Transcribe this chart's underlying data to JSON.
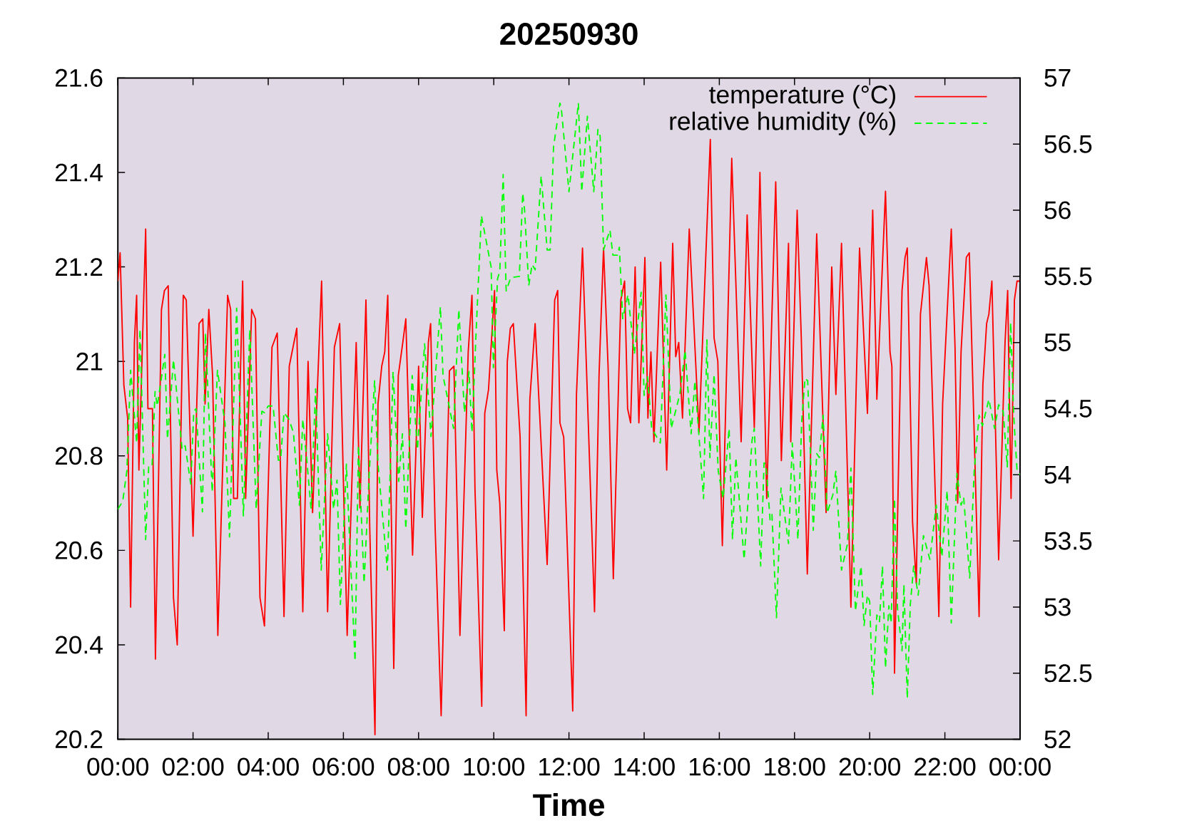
{
  "chart_data": {
    "type": "line",
    "title": "20250930",
    "xlabel": "Time",
    "xlim": [
      0,
      24
    ],
    "xticks": [
      {
        "value": 0,
        "label": "00:00"
      },
      {
        "value": 2,
        "label": "02:00"
      },
      {
        "value": 4,
        "label": "04:00"
      },
      {
        "value": 6,
        "label": "06:00"
      },
      {
        "value": 8,
        "label": "08:00"
      },
      {
        "value": 10,
        "label": "10:00"
      },
      {
        "value": 12,
        "label": "12:00"
      },
      {
        "value": 14,
        "label": "14:00"
      },
      {
        "value": 16,
        "label": "16:00"
      },
      {
        "value": 18,
        "label": "18:00"
      },
      {
        "value": 20,
        "label": "20:00"
      },
      {
        "value": 22,
        "label": "22:00"
      },
      {
        "value": 24,
        "label": "00:00"
      }
    ],
    "ylim": [
      20.2,
      21.6
    ],
    "yticks": [
      20.2,
      20.4,
      20.6,
      20.8,
      21,
      21.2,
      21.4,
      21.6
    ],
    "y2lim": [
      52,
      57
    ],
    "y2ticks": [
      52,
      52.5,
      53,
      53.5,
      54,
      54.5,
      55,
      55.5,
      56,
      56.5,
      57
    ],
    "legend": "top right",
    "series": [
      {
        "name": "temperature (°C)",
        "color": "#ff0000",
        "line_style": "solid",
        "x": [
          0,
          0.06,
          0.16,
          0.26,
          0.34,
          0.44,
          0.5,
          0.56,
          0.74,
          0.8,
          0.92,
          1.0,
          1.16,
          1.24,
          1.34,
          1.48,
          1.58,
          1.74,
          1.82,
          2.0,
          2.16,
          2.26,
          2.32,
          2.42,
          2.52,
          2.66,
          2.92,
          3.0,
          3.08,
          3.18,
          3.32,
          3.4,
          3.56,
          3.66,
          3.78,
          3.9,
          4.1,
          4.24,
          4.42,
          4.56,
          4.76,
          4.92,
          5.06,
          5.18,
          5.42,
          5.58,
          5.76,
          5.9,
          6.02,
          6.1,
          6.34,
          6.44,
          6.6,
          6.7,
          6.84,
          6.92,
          7.02,
          7.1,
          7.18,
          7.34,
          7.46,
          7.58,
          7.66,
          7.84,
          8.0,
          8.1,
          8.26,
          8.32,
          8.44,
          8.6,
          8.82,
          8.94,
          9.1,
          9.32,
          9.42,
          9.5,
          9.68,
          9.76,
          9.86,
          10.02,
          10.08,
          10.16,
          10.28,
          10.36,
          10.44,
          10.52,
          10.7,
          10.86,
          10.96,
          11.1,
          11.42,
          11.62,
          11.7,
          11.76,
          11.86,
          12.1,
          12.2,
          12.36,
          12.68,
          12.8,
          12.92,
          13.04,
          13.18,
          13.38,
          13.48,
          13.56,
          13.64,
          13.76,
          13.86,
          14.02,
          14.1,
          14.18,
          14.26,
          14.44,
          14.6,
          14.76,
          14.84,
          14.92,
          15.02,
          15.2,
          15.46,
          15.76,
          15.86,
          15.96,
          16.08,
          16.33,
          16.58,
          16.74,
          16.93,
          17.08,
          17.26,
          17.5,
          17.65,
          17.84,
          17.9,
          18.07,
          18.18,
          18.34,
          18.59,
          18.84,
          18.99,
          19.1,
          19.25,
          19.5,
          19.73,
          19.94,
          20.08,
          20.19,
          20.42,
          20.54,
          20.59,
          20.66,
          20.86,
          20.94,
          21.0,
          21.14,
          21.24,
          21.35,
          21.51,
          21.58,
          21.84,
          21.94,
          22.17,
          22.27,
          22.34,
          22.43,
          22.57,
          22.65,
          22.91,
          23.01,
          23.11,
          23.17,
          23.25,
          23.43,
          23.6,
          23.67,
          23.76,
          23.85,
          23.92,
          24
        ],
        "values": [
          21.17,
          21.23,
          20.95,
          20.88,
          20.48,
          21.04,
          21.14,
          20.77,
          21.28,
          20.9,
          20.9,
          20.37,
          21.11,
          21.15,
          21.16,
          20.5,
          20.4,
          21.14,
          21.13,
          20.63,
          21.08,
          21.09,
          20.91,
          21.11,
          20.97,
          20.42,
          21.14,
          21.11,
          20.71,
          20.71,
          21.17,
          20.71,
          21.11,
          21.09,
          20.5,
          20.44,
          21.03,
          21.06,
          20.46,
          20.99,
          21.07,
          20.47,
          21.0,
          20.68,
          21.17,
          20.47,
          21.03,
          21.08,
          20.68,
          20.42,
          21.04,
          20.69,
          21.13,
          20.65,
          20.21,
          20.91,
          20.99,
          21.02,
          21.14,
          20.35,
          20.97,
          21.04,
          21.09,
          20.59,
          20.99,
          20.67,
          21.04,
          21.08,
          20.65,
          20.25,
          20.98,
          20.99,
          20.42,
          21.02,
          21.14,
          20.73,
          20.27,
          20.89,
          20.94,
          21.15,
          20.77,
          20.7,
          20.43,
          21.0,
          21.07,
          21.08,
          20.84,
          20.25,
          20.92,
          21.08,
          20.57,
          21.13,
          21.15,
          20.87,
          20.84,
          20.26,
          20.93,
          21.24,
          20.47,
          20.97,
          21.24,
          20.99,
          20.54,
          21.13,
          21.17,
          20.9,
          20.87,
          21.2,
          20.87,
          21.22,
          20.88,
          21.02,
          20.83,
          21.21,
          20.77,
          21.25,
          21.01,
          21.04,
          20.88,
          21.28,
          20.85,
          21.47,
          21.05,
          21.0,
          20.61,
          21.43,
          20.83,
          21.31,
          20.86,
          21.4,
          20.71,
          21.38,
          20.79,
          21.25,
          20.83,
          21.32,
          21.05,
          20.55,
          21.27,
          20.68,
          21.2,
          20.93,
          21.25,
          20.48,
          21.24,
          20.89,
          21.32,
          20.92,
          21.36,
          21.02,
          20.99,
          20.34,
          21.15,
          21.22,
          21.24,
          20.66,
          20.53,
          21.1,
          21.22,
          21.16,
          20.46,
          20.91,
          21.28,
          21.03,
          20.7,
          21.02,
          21.22,
          21.23,
          20.46,
          20.95,
          21.08,
          21.1,
          21.17,
          20.58,
          21.04,
          21.15,
          20.71,
          21.13,
          21.17,
          21.17
        ]
      },
      {
        "name": "relative humidity (%)",
        "color": "#00ff00",
        "line_style": "dashed",
        "axis": "y2",
        "x": [
          0,
          0.13,
          0.24,
          0.34,
          0.5,
          0.59,
          0.74,
          0.82,
          0.91,
          0.99,
          1.05,
          1.25,
          1.32,
          1.48,
          1.71,
          1.79,
          1.94,
          2.02,
          2.08,
          2.25,
          2.33,
          2.51,
          2.65,
          2.85,
          2.97,
          3.16,
          3.34,
          3.51,
          3.68,
          3.83,
          3.9,
          4.0,
          4.13,
          4.27,
          4.33,
          4.42,
          4.55,
          4.67,
          4.83,
          4.92,
          5.02,
          5.14,
          5.26,
          5.41,
          5.58,
          5.74,
          5.83,
          5.92,
          6.08,
          6.17,
          6.31,
          6.4,
          6.55,
          6.69,
          6.83,
          6.92,
          7.17,
          7.32,
          7.47,
          7.57,
          7.66,
          7.83,
          7.97,
          8.16,
          8.33,
          8.58,
          8.65,
          8.93,
          9.07,
          9.22,
          9.34,
          9.42,
          9.53,
          9.67,
          9.93,
          9.99,
          10.1,
          10.16,
          10.25,
          10.33,
          10.45,
          10.68,
          10.77,
          10.82,
          10.93,
          11.02,
          11.1,
          11.26,
          11.42,
          11.5,
          11.59,
          11.76,
          11.8,
          12.0,
          12.25,
          12.34,
          12.49,
          12.66,
          12.77,
          12.83,
          12.92,
          13.09,
          13.17,
          13.29,
          13.34,
          13.43,
          13.57,
          13.74,
          13.92,
          14.0,
          14.09,
          14.2,
          14.43,
          14.58,
          14.72,
          14.95,
          15.09,
          15.25,
          15.35,
          15.58,
          15.67,
          15.75,
          15.86,
          15.97,
          16.1,
          16.26,
          16.35,
          16.44,
          16.66,
          16.87,
          16.93,
          17.1,
          17.19,
          17.24,
          17.35,
          17.4,
          17.52,
          17.64,
          17.84,
          17.94,
          18.09,
          18.19,
          18.28,
          18.35,
          18.5,
          18.59,
          18.66,
          18.76,
          18.87,
          19.02,
          19.1,
          19.25,
          19.41,
          19.5,
          19.62,
          19.77,
          19.85,
          19.94,
          20.0,
          20.08,
          20.19,
          20.26,
          20.34,
          20.42,
          20.51,
          20.57,
          20.66,
          20.74,
          20.86,
          20.91,
          21.0,
          21.08,
          21.17,
          21.29,
          21.43,
          21.6,
          21.77,
          21.92,
          22.06,
          22.17,
          22.32,
          22.43,
          22.5,
          22.66,
          22.78,
          22.91,
          23.0,
          23.17,
          23.32,
          23.43,
          23.55,
          23.66,
          23.75,
          23.83,
          23.92,
          24
        ],
        "values": [
          53.74,
          53.8,
          54.03,
          54.79,
          54.24,
          55.1,
          53.51,
          54.06,
          54.06,
          54.63,
          54.52,
          54.91,
          54.27,
          54.87,
          54.19,
          54.22,
          53.93,
          54.48,
          54.5,
          53.72,
          55.07,
          53.87,
          54.79,
          54.39,
          53.53,
          55.26,
          53.69,
          55.1,
          53.74,
          54.48,
          54.47,
          54.52,
          54.52,
          54.11,
          54.11,
          54.47,
          54.42,
          54.32,
          53.77,
          54.42,
          54.13,
          53.74,
          54.65,
          53.28,
          54.31,
          53.74,
          53.96,
          53.02,
          54.08,
          53.48,
          52.59,
          54.22,
          53.18,
          54.03,
          54.71,
          54.08,
          53.28,
          54.78,
          53.95,
          54.31,
          53.59,
          54.75,
          54.19,
          54.99,
          54.29,
          55.27,
          54.75,
          54.35,
          55.25,
          54.47,
          54.78,
          54.32,
          55.08,
          55.96,
          55.57,
          54.81,
          55.48,
          55.54,
          56.27,
          55.39,
          55.49,
          55.5,
          56.13,
          56.0,
          55.43,
          55.59,
          55.55,
          56.26,
          55.7,
          55.7,
          56.48,
          56.81,
          56.76,
          56.14,
          56.81,
          56.14,
          56.71,
          56.14,
          56.61,
          56.56,
          55.7,
          55.85,
          55.66,
          55.66,
          55.72,
          55.18,
          55.36,
          54.91,
          55.38,
          54.6,
          54.74,
          54.35,
          54.24,
          55.36,
          54.35,
          54.61,
          54.94,
          54.31,
          54.71,
          53.82,
          55.02,
          54.13,
          54.76,
          54.03,
          53.82,
          54.35,
          53.51,
          54.13,
          53.36,
          54.26,
          54.35,
          53.31,
          54.09,
          54.08,
          53.66,
          53.7,
          52.92,
          53.9,
          53.48,
          54.24,
          53.51,
          54.4,
          54.73,
          54.71,
          53.58,
          54.16,
          54.13,
          54.45,
          53.71,
          53.85,
          54.03,
          53.28,
          53.48,
          54.05,
          52.97,
          53.31,
          52.86,
          53.09,
          53.04,
          52.34,
          52.94,
          52.89,
          53.31,
          52.54,
          53.01,
          52.88,
          53.82,
          52.99,
          52.67,
          53.17,
          52.31,
          53.02,
          53.31,
          53.09,
          53.54,
          53.36,
          53.77,
          53.38,
          53.88,
          52.88,
          54.01,
          53.77,
          53.83,
          53.22,
          54.03,
          54.45,
          54.37,
          54.57,
          54.35,
          54.53,
          54.48,
          54.06,
          55.15,
          54.45,
          54.03,
          54.0
        ]
      }
    ]
  }
}
